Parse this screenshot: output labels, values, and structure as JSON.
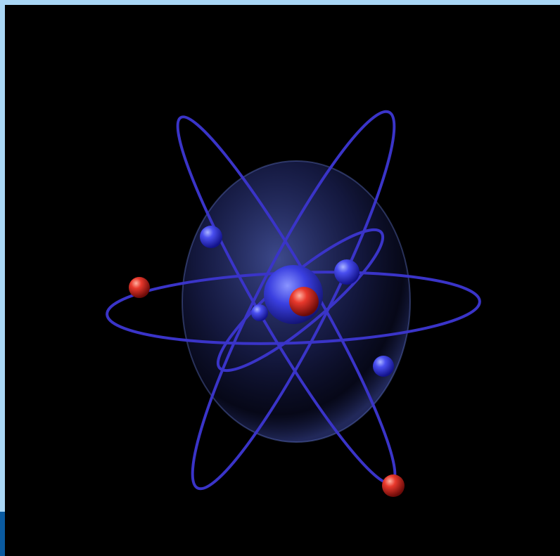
{
  "image": {
    "subject": "atom-model",
    "colors": {
      "frame_light": "#a9d6f5",
      "frame_dark": "#0a5aa0",
      "background": "#000000",
      "orbit": "#3a34c8",
      "electron_blue": "#3b3fe0",
      "electron_red": "#e0302a",
      "shell": "#5a6ee0"
    }
  }
}
